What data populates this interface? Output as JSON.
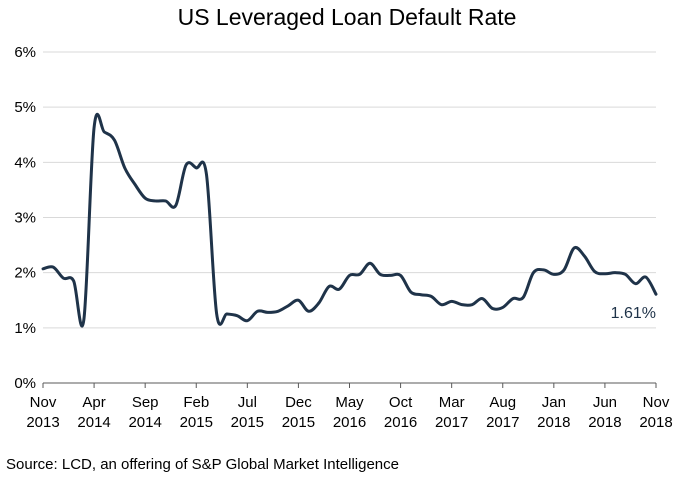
{
  "chart_data": {
    "type": "line",
    "title": "US Leveraged Loan Default Rate",
    "xlabel": "",
    "ylabel": "",
    "ylim": [
      0,
      6
    ],
    "y_ticks": [
      "0%",
      "1%",
      "2%",
      "3%",
      "4%",
      "5%",
      "6%"
    ],
    "x_ticks": [
      [
        "Nov",
        "2013"
      ],
      [
        "Apr",
        "2014"
      ],
      [
        "Sep",
        "2014"
      ],
      [
        "Feb",
        "2015"
      ],
      [
        "Jul",
        "2015"
      ],
      [
        "Dec",
        "2015"
      ],
      [
        "May",
        "2016"
      ],
      [
        "Oct",
        "2016"
      ],
      [
        "Mar",
        "2017"
      ],
      [
        "Aug",
        "2017"
      ],
      [
        "Jan",
        "2018"
      ],
      [
        "Jun",
        "2018"
      ],
      [
        "Nov",
        "2018"
      ]
    ],
    "grid": true,
    "line_color": "#1f3349",
    "series": [
      {
        "values": [
          2.07,
          2.1,
          1.9,
          1.85,
          1.15,
          4.63,
          4.55,
          4.4,
          3.9,
          3.6,
          3.35,
          3.3,
          3.3,
          3.22,
          3.95,
          3.9,
          3.78,
          1.25,
          1.25,
          1.22,
          1.13,
          1.3,
          1.28,
          1.3,
          1.4,
          1.5,
          1.3,
          1.45,
          1.75,
          1.7,
          1.95,
          1.97,
          2.17,
          1.97,
          1.95,
          1.95,
          1.65,
          1.6,
          1.57,
          1.42,
          1.48,
          1.42,
          1.42,
          1.53,
          1.35,
          1.37,
          1.53,
          1.55,
          2.0,
          2.05,
          1.97,
          2.05,
          2.45,
          2.3,
          2.02,
          1.98,
          2.0,
          1.97,
          1.8,
          1.92,
          1.61
        ]
      }
    ],
    "end_label": "1.61%"
  },
  "source": "Source: LCD, an offering of S&P Global Market Intelligence"
}
